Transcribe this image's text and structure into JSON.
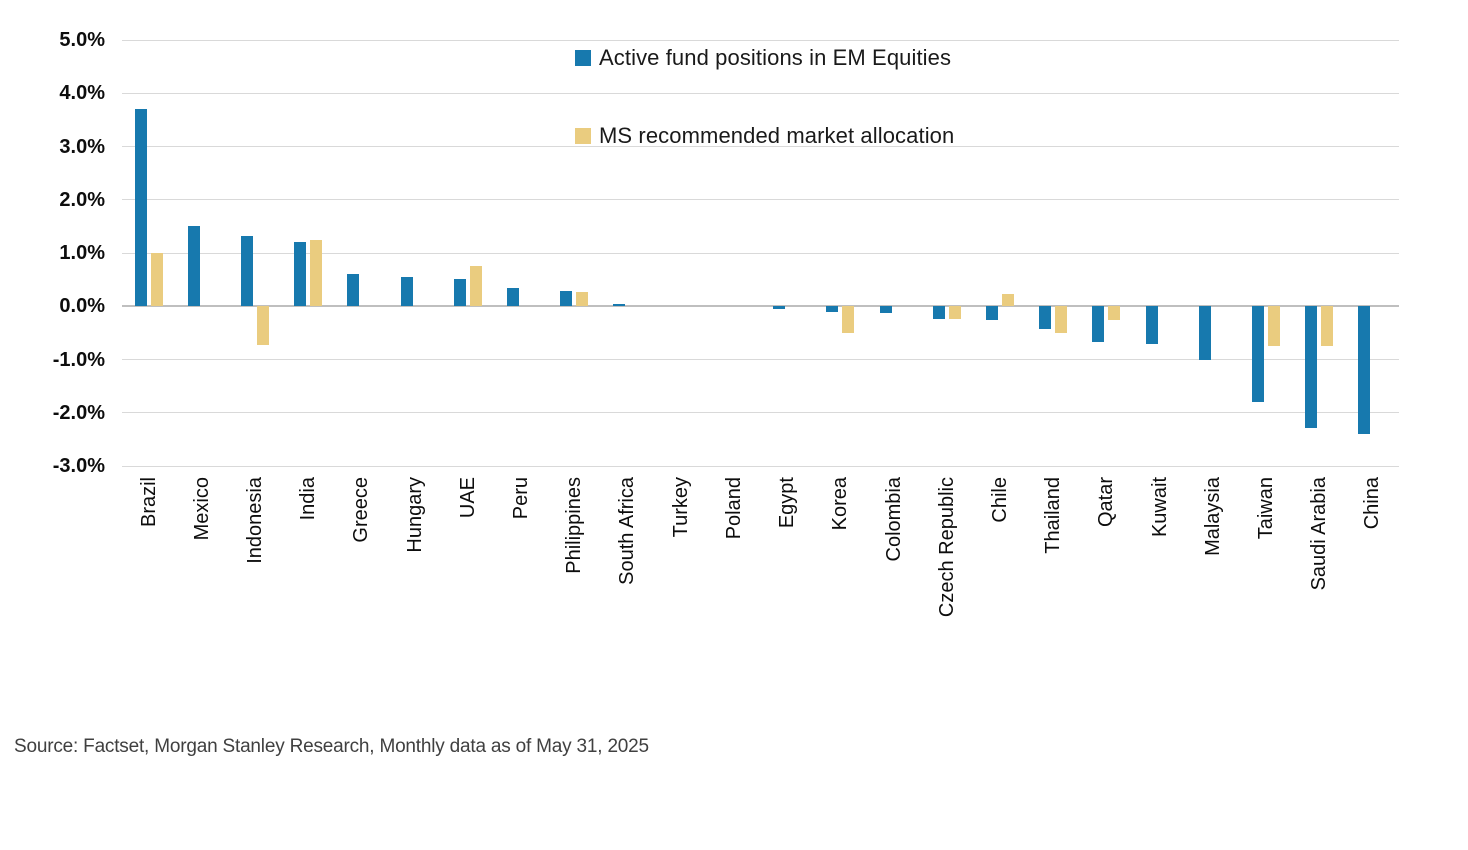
{
  "legend": {
    "items": [
      {
        "label": "Active fund positions in EM Equities",
        "color": "#1779AE"
      },
      {
        "label": "MS recommended market allocation",
        "color": "#EACC7F"
      }
    ]
  },
  "source_note": "Source: Factset, Morgan Stanley Research, Monthly data as of May 31, 2025",
  "chart_data": {
    "type": "bar",
    "title": "",
    "xlabel": "",
    "ylabel": "",
    "categories": [
      "Brazil",
      "Mexico",
      "Indonesia",
      "India",
      "Greece",
      "Hungary",
      "UAE",
      "Peru",
      "Philippines",
      "South Africa",
      "Turkey",
      "Poland",
      "Egypt",
      "Korea",
      "Colombia",
      "Czech Republic",
      "Chile",
      "Thailand",
      "Qatar",
      "Kuwait",
      "Malaysia",
      "Taiwan",
      "Saudi Arabia",
      "China"
    ],
    "series": [
      {
        "name": "Active fund positions in EM Equities",
        "color": "#1779AE",
        "values": [
          3.7,
          1.5,
          1.32,
          1.2,
          0.6,
          0.55,
          0.52,
          0.35,
          0.28,
          0.05,
          0.0,
          0.0,
          -0.06,
          -0.1,
          -0.13,
          -0.24,
          -0.25,
          -0.42,
          -0.67,
          -0.7,
          -1.0,
          -1.8,
          -2.28,
          -2.4
        ]
      },
      {
        "name": "MS recommended market allocation",
        "color": "#EACC7F",
        "values": [
          1.0,
          null,
          -0.73,
          1.25,
          null,
          null,
          0.76,
          null,
          0.26,
          null,
          null,
          null,
          null,
          -0.5,
          null,
          -0.24,
          0.23,
          -0.5,
          -0.25,
          null,
          null,
          -0.75,
          -0.74,
          null
        ]
      }
    ],
    "ylim": [
      -3.0,
      5.0
    ],
    "ytick_step": 1.0,
    "ytick_labels": [
      "5.0%",
      "4.0%",
      "3.0%",
      "2.0%",
      "1.0%",
      "0.0%",
      "-1.0%",
      "-2.0%",
      "-3.0%"
    ],
    "grid": true,
    "legend_position": "top-center",
    "gridline_color": "#d9d9d9",
    "zero_line_color": "#bfbfbf"
  }
}
